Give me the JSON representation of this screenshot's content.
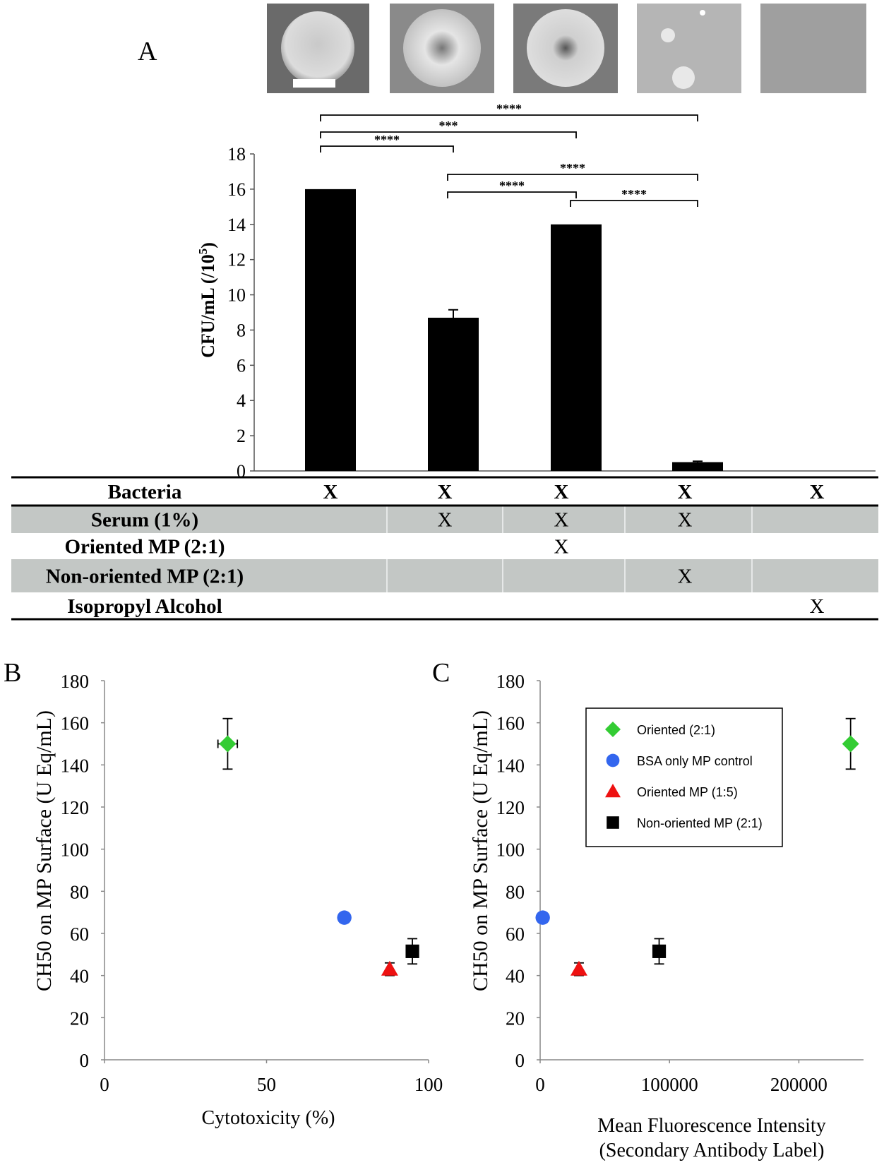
{
  "panel_labels": {
    "a": "A",
    "b": "B",
    "c": "C"
  },
  "thumbnails": [
    {
      "name": "thumb-bacteria"
    },
    {
      "name": "thumb-serum"
    },
    {
      "name": "thumb-oriented"
    },
    {
      "name": "thumb-non-oriented"
    },
    {
      "name": "thumb-isopropyl"
    }
  ],
  "chart_data": [
    {
      "id": "A",
      "type": "bar",
      "ylabel_main": "CFU/mL (/10",
      "ylabel_sup": "5",
      "ylabel_close": ")",
      "ylim": [
        0,
        18
      ],
      "yticks": [
        "0",
        "2",
        "4",
        "6",
        "8",
        "10",
        "12",
        "14",
        "16",
        "18"
      ],
      "categories": [
        "1",
        "2",
        "3",
        "4",
        "5"
      ],
      "values": [
        16.0,
        8.7,
        14.0,
        0.5,
        0.0
      ],
      "errors": [
        0.0,
        0.45,
        0.0,
        0.05,
        0.0
      ],
      "color": "#000000",
      "significance": [
        {
          "from": 1,
          "to": 2,
          "label": "****"
        },
        {
          "from": 1,
          "to": 3,
          "label": "***"
        },
        {
          "from": 1,
          "to": 4,
          "label": "****"
        },
        {
          "from": 2,
          "to": 4,
          "label": "****"
        },
        {
          "from": 2,
          "to": 3,
          "label": "****"
        },
        {
          "from": 3,
          "to": 4,
          "label": "****"
        }
      ],
      "table": {
        "mark": "X",
        "rows": [
          {
            "label": "Bacteria",
            "marks": [
              true,
              true,
              true,
              true,
              true
            ],
            "shaded": false
          },
          {
            "label": "Serum (1%)",
            "marks": [
              false,
              true,
              true,
              true,
              false
            ],
            "shaded": true
          },
          {
            "label": "Oriented MP (2:1)",
            "marks": [
              false,
              false,
              true,
              false,
              false
            ],
            "shaded": false
          },
          {
            "label": "Non-oriented MP (2:1)",
            "marks": [
              false,
              false,
              false,
              true,
              false
            ],
            "shaded": true
          },
          {
            "label": "Isopropyl Alcohol",
            "marks": [
              false,
              false,
              false,
              false,
              true
            ],
            "shaded": false
          }
        ]
      }
    },
    {
      "id": "B",
      "type": "scatter",
      "xlabel": "Cytotoxicity (%)",
      "ylabel": "CH50 on MP Surface (U Eq/mL)",
      "xlim": [
        0,
        100
      ],
      "ylim": [
        0,
        180
      ],
      "xticks": [
        "0",
        "50",
        "100"
      ],
      "yticks": [
        "0",
        "20",
        "40",
        "60",
        "80",
        "100",
        "120",
        "140",
        "160",
        "180"
      ],
      "series": [
        {
          "name": "Oriented (2:1)",
          "marker": "diamond",
          "color": "#33cc33",
          "x": 38,
          "y": 150,
          "xerr": 3,
          "yerr": 12
        },
        {
          "name": "BSA only MP control",
          "marker": "circle",
          "color": "#3366ee",
          "x": 74,
          "y": 67.5,
          "xerr": 1.5,
          "yerr": 0
        },
        {
          "name": "Oriented MP (1:5)",
          "marker": "triangle",
          "color": "#ee1111",
          "x": 88,
          "y": 43,
          "xerr": 0,
          "yerr": 3
        },
        {
          "name": "Non-oriented MP (2:1)",
          "marker": "square",
          "color": "#000000",
          "x": 95,
          "y": 51.5,
          "xerr": 0,
          "yerr": 6
        }
      ]
    },
    {
      "id": "C",
      "type": "scatter",
      "xlabel_line1": "Mean Fluorescence Intensity",
      "xlabel_line2": "(Secondary Antibody Label)",
      "ylabel": "CH50 on MP Surface (U Eq/mL)",
      "xlim": [
        0,
        250000
      ],
      "ylim": [
        0,
        180
      ],
      "xticks": [
        "0",
        "100000",
        "200000"
      ],
      "yticks": [
        "0",
        "20",
        "40",
        "60",
        "80",
        "100",
        "120",
        "140",
        "160",
        "180"
      ],
      "series": [
        {
          "name": "Oriented (2:1)",
          "marker": "diamond",
          "color": "#33cc33",
          "x": 240000,
          "y": 150,
          "xerr": 0,
          "yerr": 12
        },
        {
          "name": "BSA only MP control",
          "marker": "circle",
          "color": "#3366ee",
          "x": 2000,
          "y": 67.5,
          "xerr": 0,
          "yerr": 0
        },
        {
          "name": "Oriented MP (1:5)",
          "marker": "triangle",
          "color": "#ee1111",
          "x": 30000,
          "y": 43,
          "xerr": 0,
          "yerr": 3
        },
        {
          "name": "Non-oriented MP (2:1)",
          "marker": "square",
          "color": "#000000",
          "x": 92000,
          "y": 51.5,
          "xerr": 0,
          "yerr": 6
        }
      ],
      "legend_position": "top-right"
    }
  ]
}
